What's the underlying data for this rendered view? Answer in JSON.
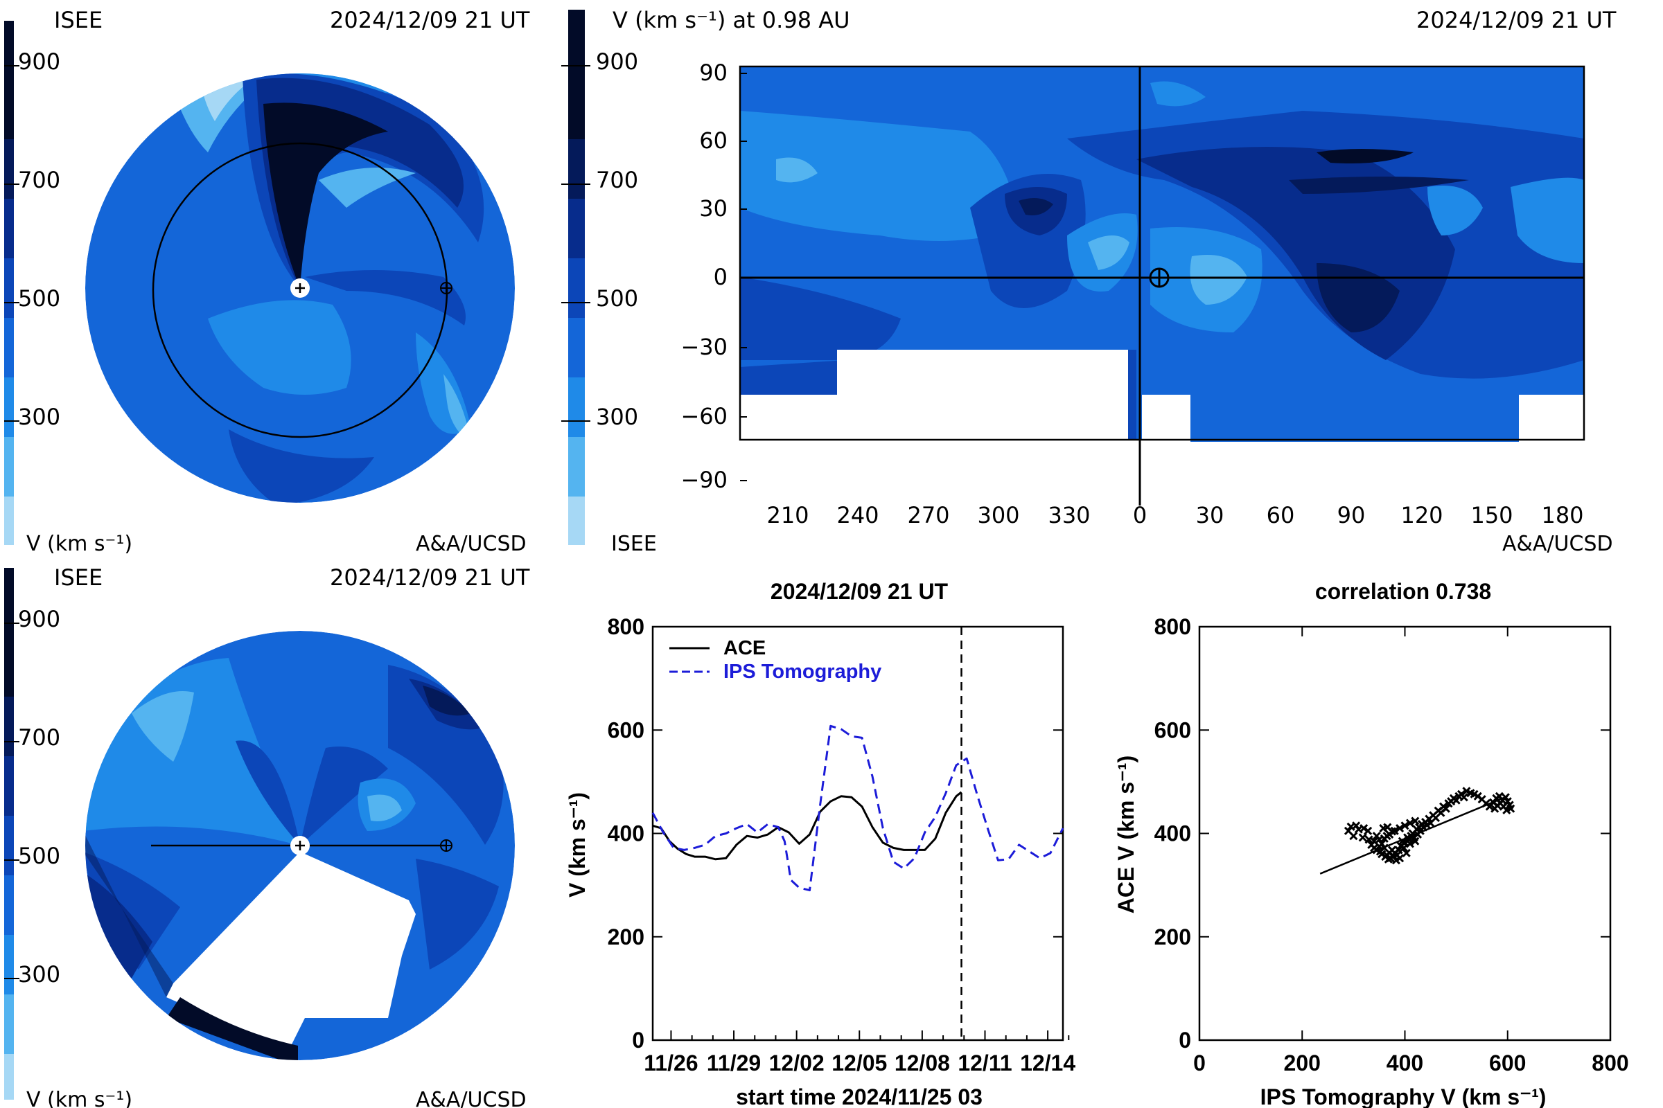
{
  "panels": {
    "ecliptic_view": {
      "org_left": "ISEE",
      "timestamp": "2024/12/09 21 UT",
      "colorbar_label": "V (km s⁻¹)",
      "credit": "A&A/UCSD",
      "colorbar_ticks": [
        "900",
        "700",
        "500",
        "300"
      ]
    },
    "meridional_view": {
      "org_left": "ISEE",
      "timestamp": "2024/12/09 21 UT",
      "colorbar_label": "V (km s⁻¹)",
      "credit": "A&A/UCSD",
      "colorbar_ticks": [
        "900",
        "700",
        "500",
        "300"
      ]
    },
    "synoptic_map": {
      "title": "V (km s⁻¹) at 0.98 AU",
      "timestamp": "2024/12/09 21 UT",
      "org_left": "ISEE",
      "credit": "A&A/UCSD",
      "colorbar_ticks": [
        "900",
        "700",
        "500",
        "300"
      ],
      "y_ticks": [
        "90",
        "60",
        "30",
        "0",
        "−30",
        "−60",
        "−90"
      ],
      "x_ticks": [
        "210",
        "240",
        "270",
        "300",
        "330",
        "0",
        "30",
        "60",
        "90",
        "120",
        "150",
        "180"
      ]
    }
  },
  "colors": {
    "level_1": "#a6d8f5",
    "level_2": "#54b4f0",
    "level_3": "#1f8ae8",
    "level_4": "#1466d8",
    "level_5": "#0c46b8",
    "level_6": "#072c8c",
    "level_7": "#041a5a",
    "level_8": "#020b28",
    "series_ace": "#000000",
    "series_ips": "#1c1cd8"
  },
  "chart_data": [
    {
      "type": "line",
      "title": "2024/12/09 21 UT",
      "xlabel": "start time 2024/11/25 03",
      "ylabel": "V (km s⁻¹)",
      "x_unit": "days",
      "xlim": [
        0,
        19.6
      ],
      "ylim": [
        0,
        800
      ],
      "yticks": [
        0,
        200,
        400,
        600,
        800
      ],
      "xtick_labels": [
        "11/26",
        "11/29",
        "12/02",
        "12/05",
        "12/08",
        "12/11",
        "12/14"
      ],
      "xtick_values": [
        0.875,
        3.875,
        6.875,
        9.875,
        12.875,
        15.875,
        18.875
      ],
      "current_time_marker": 14.75,
      "legend_placement": "top-left",
      "series": [
        {
          "name": "ACE",
          "style": "solid",
          "x": [
            0,
            0.4,
            0.8,
            1.2,
            1.6,
            2.0,
            2.5,
            3.0,
            3.5,
            4.0,
            4.5,
            5.0,
            5.5,
            6.0,
            6.5,
            7.0,
            7.5,
            8.0,
            8.5,
            9.0,
            9.5,
            10.0,
            10.5,
            11.0,
            11.5,
            12.0,
            12.5,
            13.0,
            13.5,
            14.0,
            14.5,
            14.75
          ],
          "y": [
            415,
            410,
            385,
            370,
            360,
            355,
            355,
            350,
            352,
            378,
            395,
            392,
            398,
            412,
            402,
            380,
            398,
            442,
            462,
            472,
            470,
            452,
            412,
            382,
            372,
            368,
            368,
            368,
            390,
            440,
            472,
            480
          ]
        },
        {
          "name": "IPS Tomography",
          "style": "dashed",
          "x": [
            0,
            0.5,
            1.0,
            1.5,
            2.0,
            2.5,
            3.0,
            3.5,
            4.0,
            4.5,
            5.0,
            5.5,
            6.0,
            6.3,
            6.6,
            7.0,
            7.5,
            8.0,
            8.5,
            9.0,
            9.5,
            10.0,
            10.5,
            11.0,
            11.5,
            12.0,
            12.5,
            13.0,
            13.5,
            14.0,
            14.5,
            15.0,
            15.5,
            16.0,
            16.5,
            17.0,
            17.5,
            18.0,
            18.5,
            19.0,
            19.6
          ],
          "y": [
            440,
            402,
            372,
            368,
            372,
            378,
            395,
            400,
            410,
            418,
            402,
            418,
            412,
            385,
            310,
            295,
            290,
            455,
            608,
            602,
            588,
            585,
            510,
            410,
            345,
            332,
            352,
            402,
            432,
            478,
            532,
            545,
            475,
            410,
            348,
            350,
            378,
            365,
            352,
            362,
            410
          ]
        }
      ]
    },
    {
      "type": "scatter",
      "title": "correlation 0.738",
      "xlabel": "IPS Tomography V (km s⁻¹)",
      "ylabel": "ACE V (km s⁻¹)",
      "xlim": [
        0,
        800
      ],
      "ylim": [
        0,
        800
      ],
      "xticks": [
        0,
        200,
        400,
        600,
        800
      ],
      "yticks": [
        0,
        200,
        400,
        600,
        800
      ],
      "regression_line": [
        [
          235,
          322
        ],
        [
          600,
          472
        ]
      ],
      "points": [
        [
          290,
          405
        ],
        [
          295,
          413
        ],
        [
          305,
          415
        ],
        [
          300,
          395
        ],
        [
          310,
          408
        ],
        [
          320,
          410
        ],
        [
          328,
          405
        ],
        [
          318,
          392
        ],
        [
          330,
          388
        ],
        [
          335,
          378
        ],
        [
          340,
          372
        ],
        [
          345,
          368
        ],
        [
          350,
          375
        ],
        [
          352,
          365
        ],
        [
          355,
          360
        ],
        [
          360,
          372
        ],
        [
          362,
          355
        ],
        [
          365,
          358
        ],
        [
          368,
          350
        ],
        [
          370,
          362
        ],
        [
          372,
          352
        ],
        [
          375,
          368
        ],
        [
          378,
          356
        ],
        [
          380,
          362
        ],
        [
          383,
          348
        ],
        [
          385,
          358
        ],
        [
          388,
          368
        ],
        [
          390,
          352
        ],
        [
          392,
          376
        ],
        [
          395,
          385
        ],
        [
          398,
          372
        ],
        [
          400,
          382
        ],
        [
          403,
          362
        ],
        [
          405,
          392
        ],
        [
          408,
          388
        ],
        [
          410,
          380
        ],
        [
          412,
          395
        ],
        [
          415,
          400
        ],
        [
          418,
          392
        ],
        [
          420,
          385
        ],
        [
          423,
          408
        ],
        [
          425,
          398
        ],
        [
          428,
          412
        ],
        [
          430,
          405
        ],
        [
          433,
          418
        ],
        [
          436,
          412
        ],
        [
          440,
          422
        ],
        [
          443,
          416
        ],
        [
          447,
          428
        ],
        [
          450,
          420
        ],
        [
          455,
          435
        ],
        [
          460,
          430
        ],
        [
          465,
          444
        ],
        [
          470,
          440
        ],
        [
          475,
          452
        ],
        [
          480,
          448
        ],
        [
          485,
          458
        ],
        [
          490,
          462
        ],
        [
          495,
          468
        ],
        [
          500,
          464
        ],
        [
          505,
          472
        ],
        [
          510,
          476
        ],
        [
          515,
          470
        ],
        [
          520,
          482
        ],
        [
          528,
          478
        ],
        [
          535,
          476
        ],
        [
          542,
          472
        ],
        [
          550,
          466
        ],
        [
          558,
          458
        ],
        [
          565,
          452
        ],
        [
          572,
          460
        ],
        [
          578,
          468
        ],
        [
          584,
          472
        ],
        [
          590,
          464
        ],
        [
          596,
          470
        ],
        [
          600,
          462
        ],
        [
          604,
          455
        ],
        [
          606,
          448
        ],
        [
          598,
          445
        ],
        [
          592,
          452
        ],
        [
          586,
          458
        ],
        [
          580,
          454
        ],
        [
          575,
          448
        ],
        [
          340,
          385
        ],
        [
          345,
          395
        ],
        [
          350,
          388
        ],
        [
          355,
          380
        ],
        [
          360,
          390
        ],
        [
          365,
          395
        ],
        [
          370,
          398
        ],
        [
          375,
          404
        ],
        [
          358,
          410
        ],
        [
          366,
          412
        ],
        [
          380,
          405
        ],
        [
          390,
          410
        ],
        [
          400,
          415
        ],
        [
          410,
          420
        ],
        [
          420,
          424
        ]
      ]
    }
  ]
}
